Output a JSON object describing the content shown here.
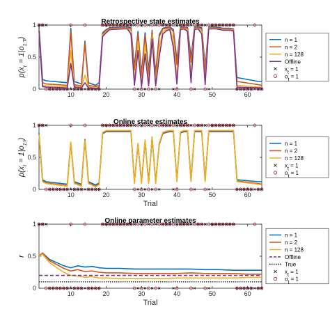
{
  "colors": {
    "n1": "#0072BD",
    "n2": "#D95319",
    "n128": "#EDB120",
    "offline": "#7E2F8E",
    "true_line": "#000000",
    "marker_x": "#000000",
    "marker_o": "#A2142F"
  },
  "chart_data": [
    {
      "type": "line",
      "title": "Retrospective state estimates",
      "xlabel": "",
      "ylabel": "p(x_t = 1|o_{1:T})",
      "ylabel_parts": [
        "p(x",
        "t",
        " = 1|o",
        "1:T",
        ")"
      ],
      "xlim": [
        1,
        64
      ],
      "ylim": [
        0,
        1
      ],
      "xticks": [
        10,
        20,
        30,
        40,
        50,
        60
      ],
      "yticks": [
        0,
        0.5,
        1
      ],
      "ytick_labels": [
        "0",
        "0.5",
        "1"
      ],
      "legend_placement": "right",
      "legend": [
        "n = 1",
        "n = 2",
        "n = 128",
        "Offline",
        "x_t = 1",
        "o_t = 1"
      ],
      "series": [
        {
          "name": "n = 1",
          "color_key": "n1",
          "x": [
            1,
            2,
            3,
            9,
            10,
            11,
            13,
            14,
            15,
            17,
            18,
            19,
            20,
            21,
            25,
            26,
            27,
            28,
            29,
            30,
            31,
            32,
            33,
            34,
            35,
            36,
            37,
            38,
            39,
            40,
            41,
            42,
            43,
            44,
            45,
            46,
            47,
            48,
            49,
            50,
            51,
            52,
            53,
            54,
            55,
            56,
            57,
            63,
            64
          ],
          "y": [
            0.98,
            0.15,
            0.13,
            0.1,
            0.95,
            0.12,
            0.08,
            0.75,
            0.1,
            0.06,
            0.1,
            0.88,
            0.93,
            0.96,
            0.97,
            0.97,
            0.96,
            0.35,
            0.9,
            0.25,
            0.88,
            0.3,
            0.92,
            0.25,
            0.85,
            0.95,
            0.96,
            0.97,
            0.93,
            0.45,
            0.97,
            0.97,
            0.96,
            0.5,
            0.97,
            0.97,
            0.96,
            0.35,
            0.97,
            0.97,
            0.97,
            0.96,
            0.95,
            0.95,
            0.95,
            0.94,
            0.18,
            0.12,
            0.12
          ]
        },
        {
          "name": "n = 2",
          "color_key": "n2",
          "x": [
            1,
            2,
            3,
            9,
            10,
            11,
            13,
            14,
            15,
            17,
            18,
            19,
            20,
            21,
            25,
            26,
            27,
            28,
            29,
            30,
            31,
            32,
            33,
            34,
            35,
            36,
            37,
            38,
            39,
            40,
            41,
            42,
            43,
            44,
            45,
            46,
            47,
            48,
            49,
            50,
            51,
            52,
            53,
            54,
            55,
            56,
            57,
            63,
            64
          ],
          "y": [
            0.95,
            0.1,
            0.08,
            0.06,
            0.9,
            0.07,
            0.05,
            0.72,
            0.06,
            0.04,
            0.06,
            0.86,
            0.92,
            0.95,
            0.96,
            0.96,
            0.94,
            0.3,
            0.86,
            0.2,
            0.84,
            0.22,
            0.9,
            0.2,
            0.82,
            0.94,
            0.95,
            0.96,
            0.9,
            0.38,
            0.96,
            0.96,
            0.95,
            0.42,
            0.96,
            0.96,
            0.94,
            0.3,
            0.96,
            0.96,
            0.96,
            0.95,
            0.94,
            0.94,
            0.94,
            0.93,
            0.12,
            0.07,
            0.06
          ]
        },
        {
          "name": "n = 128",
          "color_key": "n128",
          "x": [
            1,
            2,
            3,
            9,
            10,
            11,
            13,
            14,
            15,
            17,
            18,
            19,
            20,
            21,
            25,
            26,
            27,
            28,
            29,
            30,
            31,
            32,
            33,
            34,
            35,
            36,
            37,
            38,
            39,
            40,
            41,
            42,
            43,
            44,
            45,
            46,
            47,
            48,
            49,
            50,
            51,
            52,
            53,
            54,
            55,
            56,
            57,
            63,
            64
          ],
          "y": [
            0.93,
            0.06,
            0.05,
            0.04,
            0.6,
            0.05,
            0.03,
            0.22,
            0.04,
            0.02,
            0.04,
            0.84,
            0.9,
            0.94,
            0.95,
            0.95,
            0.9,
            0.12,
            0.75,
            0.08,
            0.7,
            0.1,
            0.85,
            0.1,
            0.65,
            0.9,
            0.93,
            0.94,
            0.78,
            0.18,
            0.94,
            0.95,
            0.92,
            0.2,
            0.94,
            0.95,
            0.9,
            0.15,
            0.95,
            0.95,
            0.95,
            0.94,
            0.93,
            0.93,
            0.93,
            0.92,
            0.06,
            0.03,
            0.03
          ]
        },
        {
          "name": "Offline",
          "color_key": "offline",
          "x": [
            1,
            2,
            3,
            9,
            10,
            11,
            13,
            14,
            15,
            17,
            18,
            19,
            20,
            21,
            25,
            26,
            27,
            28,
            29,
            30,
            31,
            32,
            33,
            34,
            35,
            36,
            37,
            38,
            39,
            40,
            41,
            42,
            43,
            44,
            45,
            46,
            47,
            48,
            49,
            50,
            51,
            52,
            53,
            54,
            55,
            56,
            57,
            63,
            64
          ],
          "y": [
            0.92,
            0.04,
            0.03,
            0.02,
            0.4,
            0.03,
            0.02,
            0.1,
            0.02,
            0.01,
            0.02,
            0.82,
            0.88,
            0.93,
            0.94,
            0.94,
            0.86,
            0.06,
            0.6,
            0.04,
            0.55,
            0.05,
            0.78,
            0.05,
            0.5,
            0.86,
            0.91,
            0.93,
            0.65,
            0.08,
            0.93,
            0.94,
            0.9,
            0.1,
            0.93,
            0.94,
            0.86,
            0.07,
            0.94,
            0.94,
            0.94,
            0.93,
            0.92,
            0.92,
            0.92,
            0.91,
            0.03,
            0.02,
            0.02
          ]
        }
      ]
    },
    {
      "type": "line",
      "title": "Online state estimates",
      "xlabel": "Trial",
      "ylabel": "p(x_t = 1|o_{1:t})",
      "ylabel_parts": [
        "p(x",
        "t",
        " = 1|o",
        "1:t",
        ")"
      ],
      "xlim": [
        1,
        64
      ],
      "ylim": [
        0,
        1
      ],
      "xticks": [
        10,
        20,
        30,
        40,
        50,
        60
      ],
      "yticks": [
        0,
        0.5,
        1
      ],
      "ytick_labels": [
        "0",
        "0.5",
        "1"
      ],
      "legend_placement": "right",
      "legend": [
        "n = 1",
        "n = 2",
        "n = 128",
        "x_t = 1",
        "o_t = 1"
      ],
      "series": [
        {
          "name": "n = 1",
          "color_key": "n1",
          "x": [
            1,
            2,
            3,
            9,
            10,
            11,
            13,
            14,
            15,
            17,
            18,
            19,
            20,
            21,
            25,
            26,
            27,
            28,
            29,
            30,
            31,
            32,
            33,
            34,
            35,
            36,
            37,
            38,
            39,
            40,
            41,
            42,
            43,
            44,
            45,
            46,
            47,
            48,
            49,
            50,
            51,
            52,
            53,
            54,
            55,
            56,
            57,
            63,
            64
          ],
          "y": [
            0.88,
            0.15,
            0.12,
            0.08,
            0.72,
            0.12,
            0.08,
            0.78,
            0.12,
            0.07,
            0.1,
            0.87,
            0.9,
            0.9,
            0.9,
            0.9,
            0.9,
            0.12,
            0.7,
            0.12,
            0.75,
            0.12,
            0.8,
            0.12,
            0.7,
            0.87,
            0.89,
            0.9,
            0.9,
            0.15,
            0.88,
            0.9,
            0.9,
            0.15,
            0.9,
            0.9,
            0.9,
            0.15,
            0.9,
            0.9,
            0.9,
            0.9,
            0.9,
            0.9,
            0.9,
            0.9,
            0.15,
            0.12,
            0.12
          ]
        },
        {
          "name": "n = 2",
          "color_key": "n2",
          "x": [
            1,
            2,
            3,
            9,
            10,
            11,
            13,
            14,
            15,
            17,
            18,
            19,
            20,
            21,
            25,
            26,
            27,
            28,
            29,
            30,
            31,
            32,
            33,
            34,
            35,
            36,
            37,
            38,
            39,
            40,
            41,
            42,
            43,
            44,
            45,
            46,
            47,
            48,
            49,
            50,
            51,
            52,
            53,
            54,
            55,
            56,
            57,
            63,
            64
          ],
          "y": [
            0.87,
            0.13,
            0.1,
            0.06,
            0.73,
            0.1,
            0.06,
            0.77,
            0.1,
            0.05,
            0.08,
            0.88,
            0.91,
            0.91,
            0.91,
            0.91,
            0.91,
            0.1,
            0.71,
            0.1,
            0.76,
            0.1,
            0.81,
            0.1,
            0.71,
            0.88,
            0.9,
            0.91,
            0.91,
            0.13,
            0.89,
            0.91,
            0.91,
            0.13,
            0.91,
            0.91,
            0.91,
            0.13,
            0.91,
            0.91,
            0.91,
            0.91,
            0.91,
            0.91,
            0.91,
            0.91,
            0.13,
            0.09,
            0.08
          ]
        },
        {
          "name": "n = 128",
          "color_key": "n128",
          "x": [
            1,
            2,
            3,
            9,
            10,
            11,
            13,
            14,
            15,
            17,
            18,
            19,
            20,
            21,
            25,
            26,
            27,
            28,
            29,
            30,
            31,
            32,
            33,
            34,
            35,
            36,
            37,
            38,
            39,
            40,
            41,
            42,
            43,
            44,
            45,
            46,
            47,
            48,
            49,
            50,
            51,
            52,
            53,
            54,
            55,
            56,
            57,
            63,
            64
          ],
          "y": [
            0.86,
            0.12,
            0.09,
            0.05,
            0.74,
            0.09,
            0.05,
            0.76,
            0.09,
            0.04,
            0.07,
            0.89,
            0.92,
            0.92,
            0.92,
            0.92,
            0.92,
            0.09,
            0.72,
            0.09,
            0.77,
            0.09,
            0.82,
            0.09,
            0.72,
            0.89,
            0.91,
            0.92,
            0.92,
            0.12,
            0.9,
            0.92,
            0.92,
            0.12,
            0.92,
            0.92,
            0.92,
            0.12,
            0.92,
            0.92,
            0.92,
            0.92,
            0.92,
            0.92,
            0.92,
            0.92,
            0.12,
            0.08,
            0.07
          ]
        }
      ]
    },
    {
      "type": "line",
      "title": "Online parameter estimates",
      "xlabel": "Trial",
      "ylabel": "r",
      "ylabel_parts": [
        "r"
      ],
      "xlim": [
        1,
        64
      ],
      "ylim": [
        0,
        1
      ],
      "xticks": [
        10,
        20,
        30,
        40,
        50,
        60
      ],
      "yticks": [
        0,
        0.5,
        1
      ],
      "ytick_labels": [
        "0",
        "0.5",
        "1"
      ],
      "legend_placement": "right",
      "legend": [
        "n = 1",
        "n = 2",
        "n = 128",
        "Offline",
        "True",
        "x_t = 1",
        "o_t = 1"
      ],
      "series": [
        {
          "name": "n = 1",
          "color_key": "n1",
          "x": [
            1,
            2,
            4,
            6,
            8,
            10,
            12,
            14,
            16,
            18,
            20,
            24,
            28,
            32,
            36,
            40,
            44,
            48,
            52,
            56,
            60,
            64
          ],
          "y": [
            0.5,
            0.55,
            0.45,
            0.4,
            0.35,
            0.32,
            0.35,
            0.33,
            0.34,
            0.32,
            0.31,
            0.31,
            0.3,
            0.3,
            0.3,
            0.3,
            0.3,
            0.29,
            0.29,
            0.28,
            0.28,
            0.28
          ]
        },
        {
          "name": "n = 2",
          "color_key": "n2",
          "x": [
            1,
            2,
            4,
            6,
            8,
            10,
            12,
            14,
            16,
            18,
            20,
            24,
            28,
            32,
            36,
            40,
            44,
            48,
            52,
            56,
            60,
            64
          ],
          "y": [
            0.5,
            0.55,
            0.43,
            0.37,
            0.31,
            0.27,
            0.29,
            0.26,
            0.27,
            0.25,
            0.24,
            0.24,
            0.23,
            0.23,
            0.23,
            0.23,
            0.24,
            0.23,
            0.23,
            0.23,
            0.22,
            0.22
          ]
        },
        {
          "name": "n = 128",
          "color_key": "n128",
          "x": [
            1,
            2,
            4,
            6,
            8,
            10,
            12,
            14,
            16,
            18,
            20,
            24,
            28,
            32,
            36,
            40,
            44,
            48,
            52,
            56,
            60,
            64
          ],
          "y": [
            0.5,
            0.53,
            0.4,
            0.32,
            0.25,
            0.2,
            0.19,
            0.17,
            0.18,
            0.16,
            0.16,
            0.15,
            0.15,
            0.15,
            0.15,
            0.16,
            0.16,
            0.16,
            0.16,
            0.16,
            0.17,
            0.17
          ]
        },
        {
          "name": "Offline",
          "color_key": "offline",
          "dash": "dashed",
          "x": [
            1,
            64
          ],
          "y": [
            0.2,
            0.2
          ]
        },
        {
          "name": "True",
          "color_key": "true_line",
          "dash": "dotted",
          "x": [
            1,
            64
          ],
          "y": [
            0.1,
            0.1
          ]
        }
      ]
    }
  ],
  "markers": {
    "x_t_trials": [
      1,
      2,
      3,
      19,
      20,
      21,
      22,
      23,
      24,
      25,
      26,
      27,
      28,
      30,
      32,
      34,
      36,
      37,
      38,
      40,
      41,
      42,
      43,
      44,
      46,
      47,
      48,
      50,
      51,
      52,
      53,
      54,
      55,
      56
    ],
    "o_t_trials": [
      1,
      2,
      10,
      14,
      19,
      20,
      21,
      22,
      23,
      24,
      25,
      26,
      27,
      29,
      31,
      33,
      35,
      36,
      37,
      38,
      39,
      41,
      42,
      43,
      45,
      46,
      47,
      49,
      50,
      51,
      52,
      53,
      54,
      55,
      56,
      62
    ],
    "legend_x": "x",
    "legend_o": "o"
  }
}
